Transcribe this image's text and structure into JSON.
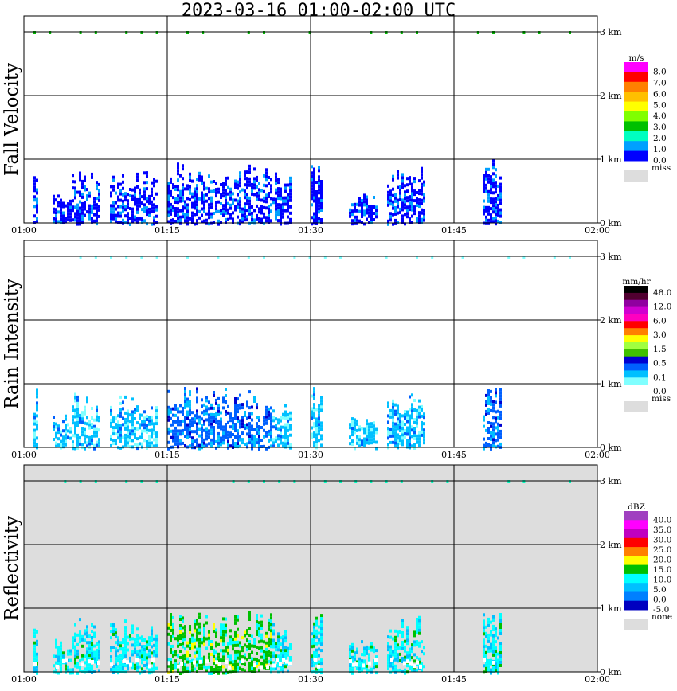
{
  "title": "2023-03-16   01:00-02:00 UTC",
  "chart_data": [
    {
      "type": "heatmap",
      "panel": "Fall Velocity",
      "ylabel": "Fall Velocity",
      "x_ticks": [
        "01:00",
        "01:15",
        "01:30",
        "01:45",
        "02:00"
      ],
      "y_ticks": [
        "0 km",
        "1 km",
        "2 km",
        "3 km"
      ],
      "xlim": [
        "01:00",
        "02:00"
      ],
      "ylim_km": [
        0,
        3.0
      ],
      "background": "#ffffff",
      "legend": {
        "unit": "m/s",
        "labels": [
          "8.0",
          "7.0",
          "6.0",
          "5.0",
          "4.0",
          "3.0",
          "2.0",
          "1.0",
          "0.0",
          "miss"
        ],
        "colors": [
          "#ff00ff",
          "#ff0000",
          "#ff8000",
          "#ffc000",
          "#ffff00",
          "#80ff00",
          "#00c000",
          "#00ffc0",
          "#00a0ff",
          "#0000ff",
          "#dddddd"
        ]
      },
      "echo_regions": [
        {
          "start": "01:01",
          "end": "01:01",
          "top_km": 0.95,
          "level": 9
        },
        {
          "start": "01:03",
          "end": "01:05",
          "top_km": 0.55,
          "level": 9
        },
        {
          "start": "01:05",
          "end": "01:06",
          "top_km": 0.9,
          "level": 9
        },
        {
          "start": "01:06",
          "end": "01:08",
          "top_km": 0.8,
          "level": 9
        },
        {
          "start": "01:09",
          "end": "01:14",
          "top_km": 0.85,
          "level": 9
        },
        {
          "start": "01:15",
          "end": "01:26",
          "top_km": 0.95,
          "level": 9
        },
        {
          "start": "01:26",
          "end": "01:28",
          "top_km": 0.8,
          "level": 9
        },
        {
          "start": "01:30",
          "end": "01:31",
          "top_km": 0.95,
          "level": 9
        },
        {
          "start": "01:34",
          "end": "01:37",
          "top_km": 0.5,
          "level": 9
        },
        {
          "start": "01:38",
          "end": "01:42",
          "top_km": 0.9,
          "level": 9
        },
        {
          "start": "01:48",
          "end": "01:50",
          "top_km": 1.0,
          "level": 9
        }
      ],
      "top_speckles_km": 3.0
    },
    {
      "type": "heatmap",
      "panel": "Rain Intensity",
      "ylabel": "Rain Intensity",
      "x_ticks": [
        "01:00",
        "01:15",
        "01:30",
        "01:45",
        "02:00"
      ],
      "y_ticks": [
        "0 km",
        "1 km",
        "2 km",
        "3 km"
      ],
      "xlim": [
        "01:00",
        "02:00"
      ],
      "ylim_km": [
        0,
        3.0
      ],
      "background": "#ffffff",
      "legend": {
        "unit": "mm/hr",
        "labels": [
          "48.0",
          "12.0",
          "6.0",
          "3.0",
          "1.5",
          "0.5",
          "0.1",
          "0.0",
          "miss"
        ],
        "colors": [
          "#000000",
          "#500030",
          "#9000a0",
          "#d000d0",
          "#ff00c0",
          "#ff0000",
          "#ff8000",
          "#ffff00",
          "#a0ff40",
          "#40c000",
          "#0000d0",
          "#0060ff",
          "#00c0ff",
          "#80ffff",
          "#ffffff",
          "#dddddd"
        ]
      },
      "echo_regions": [
        {
          "start": "01:01",
          "end": "01:01",
          "top_km": 0.95,
          "level": 2
        },
        {
          "start": "01:03",
          "end": "01:05",
          "top_km": 0.55,
          "level": 2
        },
        {
          "start": "01:05",
          "end": "01:06",
          "top_km": 0.9,
          "level": 2
        },
        {
          "start": "01:06",
          "end": "01:08",
          "top_km": 0.8,
          "level": 2
        },
        {
          "start": "01:09",
          "end": "01:14",
          "top_km": 0.85,
          "level": 2
        },
        {
          "start": "01:15",
          "end": "01:26",
          "top_km": 0.95,
          "level": 3
        },
        {
          "start": "01:26",
          "end": "01:28",
          "top_km": 0.8,
          "level": 2
        },
        {
          "start": "01:30",
          "end": "01:31",
          "top_km": 0.95,
          "level": 2
        },
        {
          "start": "01:34",
          "end": "01:37",
          "top_km": 0.5,
          "level": 2
        },
        {
          "start": "01:38",
          "end": "01:42",
          "top_km": 0.9,
          "level": 2
        },
        {
          "start": "01:48",
          "end": "01:50",
          "top_km": 1.0,
          "level": 3
        }
      ],
      "top_speckles_km": 3.0
    },
    {
      "type": "heatmap",
      "panel": "Reflectivity",
      "ylabel": "Reflectivity",
      "x_ticks": [
        "01:00",
        "01:15",
        "01:30",
        "01:45",
        "02:00"
      ],
      "y_ticks": [
        "0 km",
        "1 km",
        "2 km",
        "3 km"
      ],
      "xlim": [
        "01:00",
        "02:00"
      ],
      "ylim_km": [
        0,
        3.0
      ],
      "background": "#dddddd",
      "legend": {
        "unit": "dBZ",
        "labels": [
          "40.0",
          "35.0",
          "30.0",
          "25.0",
          "20.0",
          "15.0",
          "10.0",
          "5.0",
          "0.0",
          "-5.0",
          "none"
        ],
        "colors": [
          "#a040c0",
          "#ff00ff",
          "#c000c0",
          "#ff0000",
          "#ff8000",
          "#ffff00",
          "#00c000",
          "#00ffff",
          "#00c0ff",
          "#0080ff",
          "#0000c0",
          "#dddddd"
        ]
      },
      "echo_regions": [
        {
          "start": "01:01",
          "end": "01:01",
          "top_km": 0.95,
          "level": 3
        },
        {
          "start": "01:03",
          "end": "01:05",
          "top_km": 0.55,
          "level": 3
        },
        {
          "start": "01:05",
          "end": "01:06",
          "top_km": 0.9,
          "level": 3
        },
        {
          "start": "01:06",
          "end": "01:08",
          "top_km": 0.8,
          "level": 3
        },
        {
          "start": "01:09",
          "end": "01:14",
          "top_km": 0.85,
          "level": 3
        },
        {
          "start": "01:15",
          "end": "01:26",
          "top_km": 0.95,
          "level": 4
        },
        {
          "start": "01:26",
          "end": "01:28",
          "top_km": 0.8,
          "level": 3
        },
        {
          "start": "01:30",
          "end": "01:31",
          "top_km": 0.95,
          "level": 3
        },
        {
          "start": "01:34",
          "end": "01:37",
          "top_km": 0.5,
          "level": 3
        },
        {
          "start": "01:38",
          "end": "01:42",
          "top_km": 0.9,
          "level": 3
        },
        {
          "start": "01:48",
          "end": "01:50",
          "top_km": 1.0,
          "level": 3
        }
      ],
      "top_speckles_km": 3.0
    }
  ]
}
